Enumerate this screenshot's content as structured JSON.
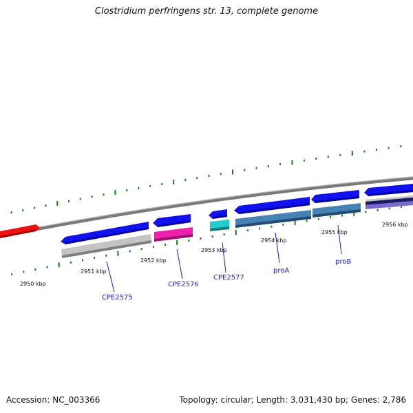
{
  "title": "Clostridium perfringens str. 13, complete genome",
  "footer": {
    "accession_label": "Accession:",
    "accession": "NC_003366",
    "summary": "Topology: circular; Length: 3,031,430 bp; Genes: 2,786"
  },
  "colors": {
    "backbone": "#808080",
    "tick": "#1a7a1a",
    "gene_label": "#1a1acc",
    "feature_red": "#ee1111",
    "feature_blue": "#1111ee",
    "feature_gray": "#c4c4c4",
    "feature_pink": "#ee22aa",
    "feature_cyan": "#22cccc",
    "feature_steel": "#4682b4",
    "feature_navy": "#1a1a66",
    "feature_violet": "#7a6acc"
  },
  "kbp_labels": [
    "2950 kbp",
    "2951 kbp",
    "2952 kbp",
    "2953 kbp",
    "2954 kbp",
    "2955 kbp",
    "2956 kbp"
  ],
  "gene_labels": [
    "CPE2575",
    "CPE2576",
    "CPE2577",
    "proA",
    "proB"
  ]
}
